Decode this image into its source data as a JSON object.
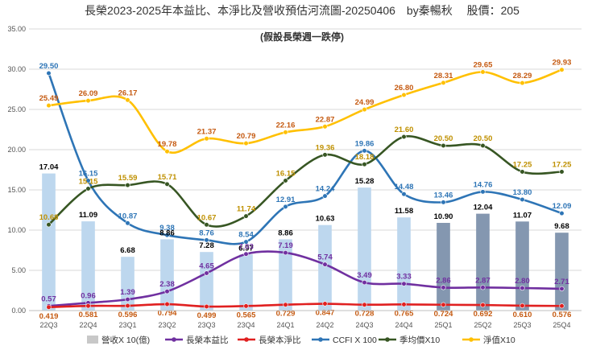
{
  "chart_data": {
    "type": "bar+line",
    "title": "長榮2023-2025年本益比、本淨比及營收預估河流圖-20250406　by秦暢秋　 股價：205",
    "subtitle": "(假設長榮週一跌停)",
    "categories": [
      "22Q3",
      "22Q4",
      "23Q1",
      "23Q2",
      "23Q3",
      "23Q4",
      "24Q1",
      "24Q2",
      "24Q3",
      "24Q4",
      "25Q1",
      "25Q2",
      "25Q3",
      "25Q4"
    ],
    "ylim": [
      0,
      35
    ],
    "yticks": [
      "0.00",
      "5.00",
      "10.00",
      "15.00",
      "20.00",
      "25.00",
      "30.00",
      "35.00"
    ],
    "ytick_values": [
      0,
      5,
      10,
      15,
      20,
      25,
      30,
      35
    ],
    "grid": true,
    "legend_position": "bottom",
    "bars": {
      "name": "營收X 10(億)",
      "values": [
        17.04,
        11.09,
        6.68,
        8.86,
        7.28,
        6.97,
        8.86,
        10.63,
        15.28,
        11.58,
        10.9,
        12.04,
        11.07,
        9.68
      ],
      "labels": [
        "17.04",
        "11.09",
        "6.68",
        "8.86",
        "7.28",
        "6.97",
        "8.86",
        "10.63",
        "15.28",
        "11.58",
        "10.90",
        "12.04",
        "11.07",
        "9.68"
      ],
      "forecast_from_index": 10,
      "color": "#bdd7ee",
      "forecast_color": "#8497b0",
      "legend_color": "#c8c8c8",
      "label_color": "#000000"
    },
    "series": [
      {
        "name": "長榮本益比",
        "values": [
          0.57,
          0.96,
          1.39,
          2.38,
          4.65,
          7.03,
          7.19,
          5.74,
          3.49,
          3.33,
          2.86,
          2.87,
          2.8,
          2.71
        ],
        "labels": [
          "0.57",
          "0.96",
          "1.39",
          "2.38",
          "4.65",
          "7.03",
          "7.19",
          "5.74",
          "3.49",
          "3.33",
          "2.86",
          "2.87",
          "2.80",
          "2.71"
        ],
        "color": "#7030a0",
        "label_color": "#7030a0",
        "label_pos": "above",
        "smooth": true
      },
      {
        "name": "長榮本淨比",
        "values": [
          0.419,
          0.581,
          0.596,
          0.794,
          0.499,
          0.565,
          0.729,
          0.847,
          0.728,
          0.765,
          0.724,
          0.692,
          0.61,
          0.576
        ],
        "labels": [
          "0.419",
          "0.581",
          "0.596",
          "0.794",
          "0.499",
          "0.565",
          "0.729",
          "0.847",
          "0.728",
          "0.765",
          "0.724",
          "0.692",
          "0.610",
          "0.576"
        ],
        "color": "#e02020",
        "label_color": "#c55a11",
        "label_pos": "below",
        "smooth": true
      },
      {
        "name": "CCFI X 100",
        "values": [
          29.5,
          16.15,
          10.87,
          9.38,
          8.76,
          8.54,
          12.91,
          14.24,
          19.86,
          14.48,
          13.46,
          14.76,
          13.8,
          12.09
        ],
        "labels": [
          "29.50",
          "16.15",
          "10.87",
          "9.38",
          "8.76",
          "8.54",
          "12.91",
          "14.24",
          "19.86",
          "14.48",
          "13.46",
          "14.76",
          "13.80",
          "12.09"
        ],
        "color": "#2e75b6",
        "label_color": "#2e75b6",
        "label_pos": "above",
        "smooth": true
      },
      {
        "name": "季均價X10",
        "values": [
          10.68,
          15.15,
          15.59,
          15.71,
          10.67,
          11.74,
          16.15,
          19.36,
          18.18,
          21.6,
          20.5,
          20.5,
          17.25,
          17.25
        ],
        "labels": [
          "10.68",
          "15.15",
          "15.59",
          "15.71",
          "10.67",
          "11.74",
          "16.15",
          "19.36",
          "18.18",
          "21.60",
          "20.50",
          "20.50",
          "17.25",
          "17.25"
        ],
        "color": "#375623",
        "label_color": "#bf9000",
        "label_pos": "above",
        "smooth": true
      },
      {
        "name": "淨值X10",
        "values": [
          25.49,
          26.09,
          26.17,
          19.78,
          21.37,
          20.79,
          22.16,
          22.87,
          24.99,
          26.8,
          28.31,
          29.65,
          28.29,
          29.93
        ],
        "labels": [
          "25.49",
          "26.09",
          "26.17",
          "19.78",
          "21.37",
          "20.79",
          "22.16",
          "22.87",
          "24.99",
          "26.80",
          "28.31",
          "29.65",
          "28.29",
          "29.93"
        ],
        "color": "#ffc000",
        "label_color": "#c55a11",
        "label_pos": "above",
        "smooth": true
      }
    ]
  }
}
